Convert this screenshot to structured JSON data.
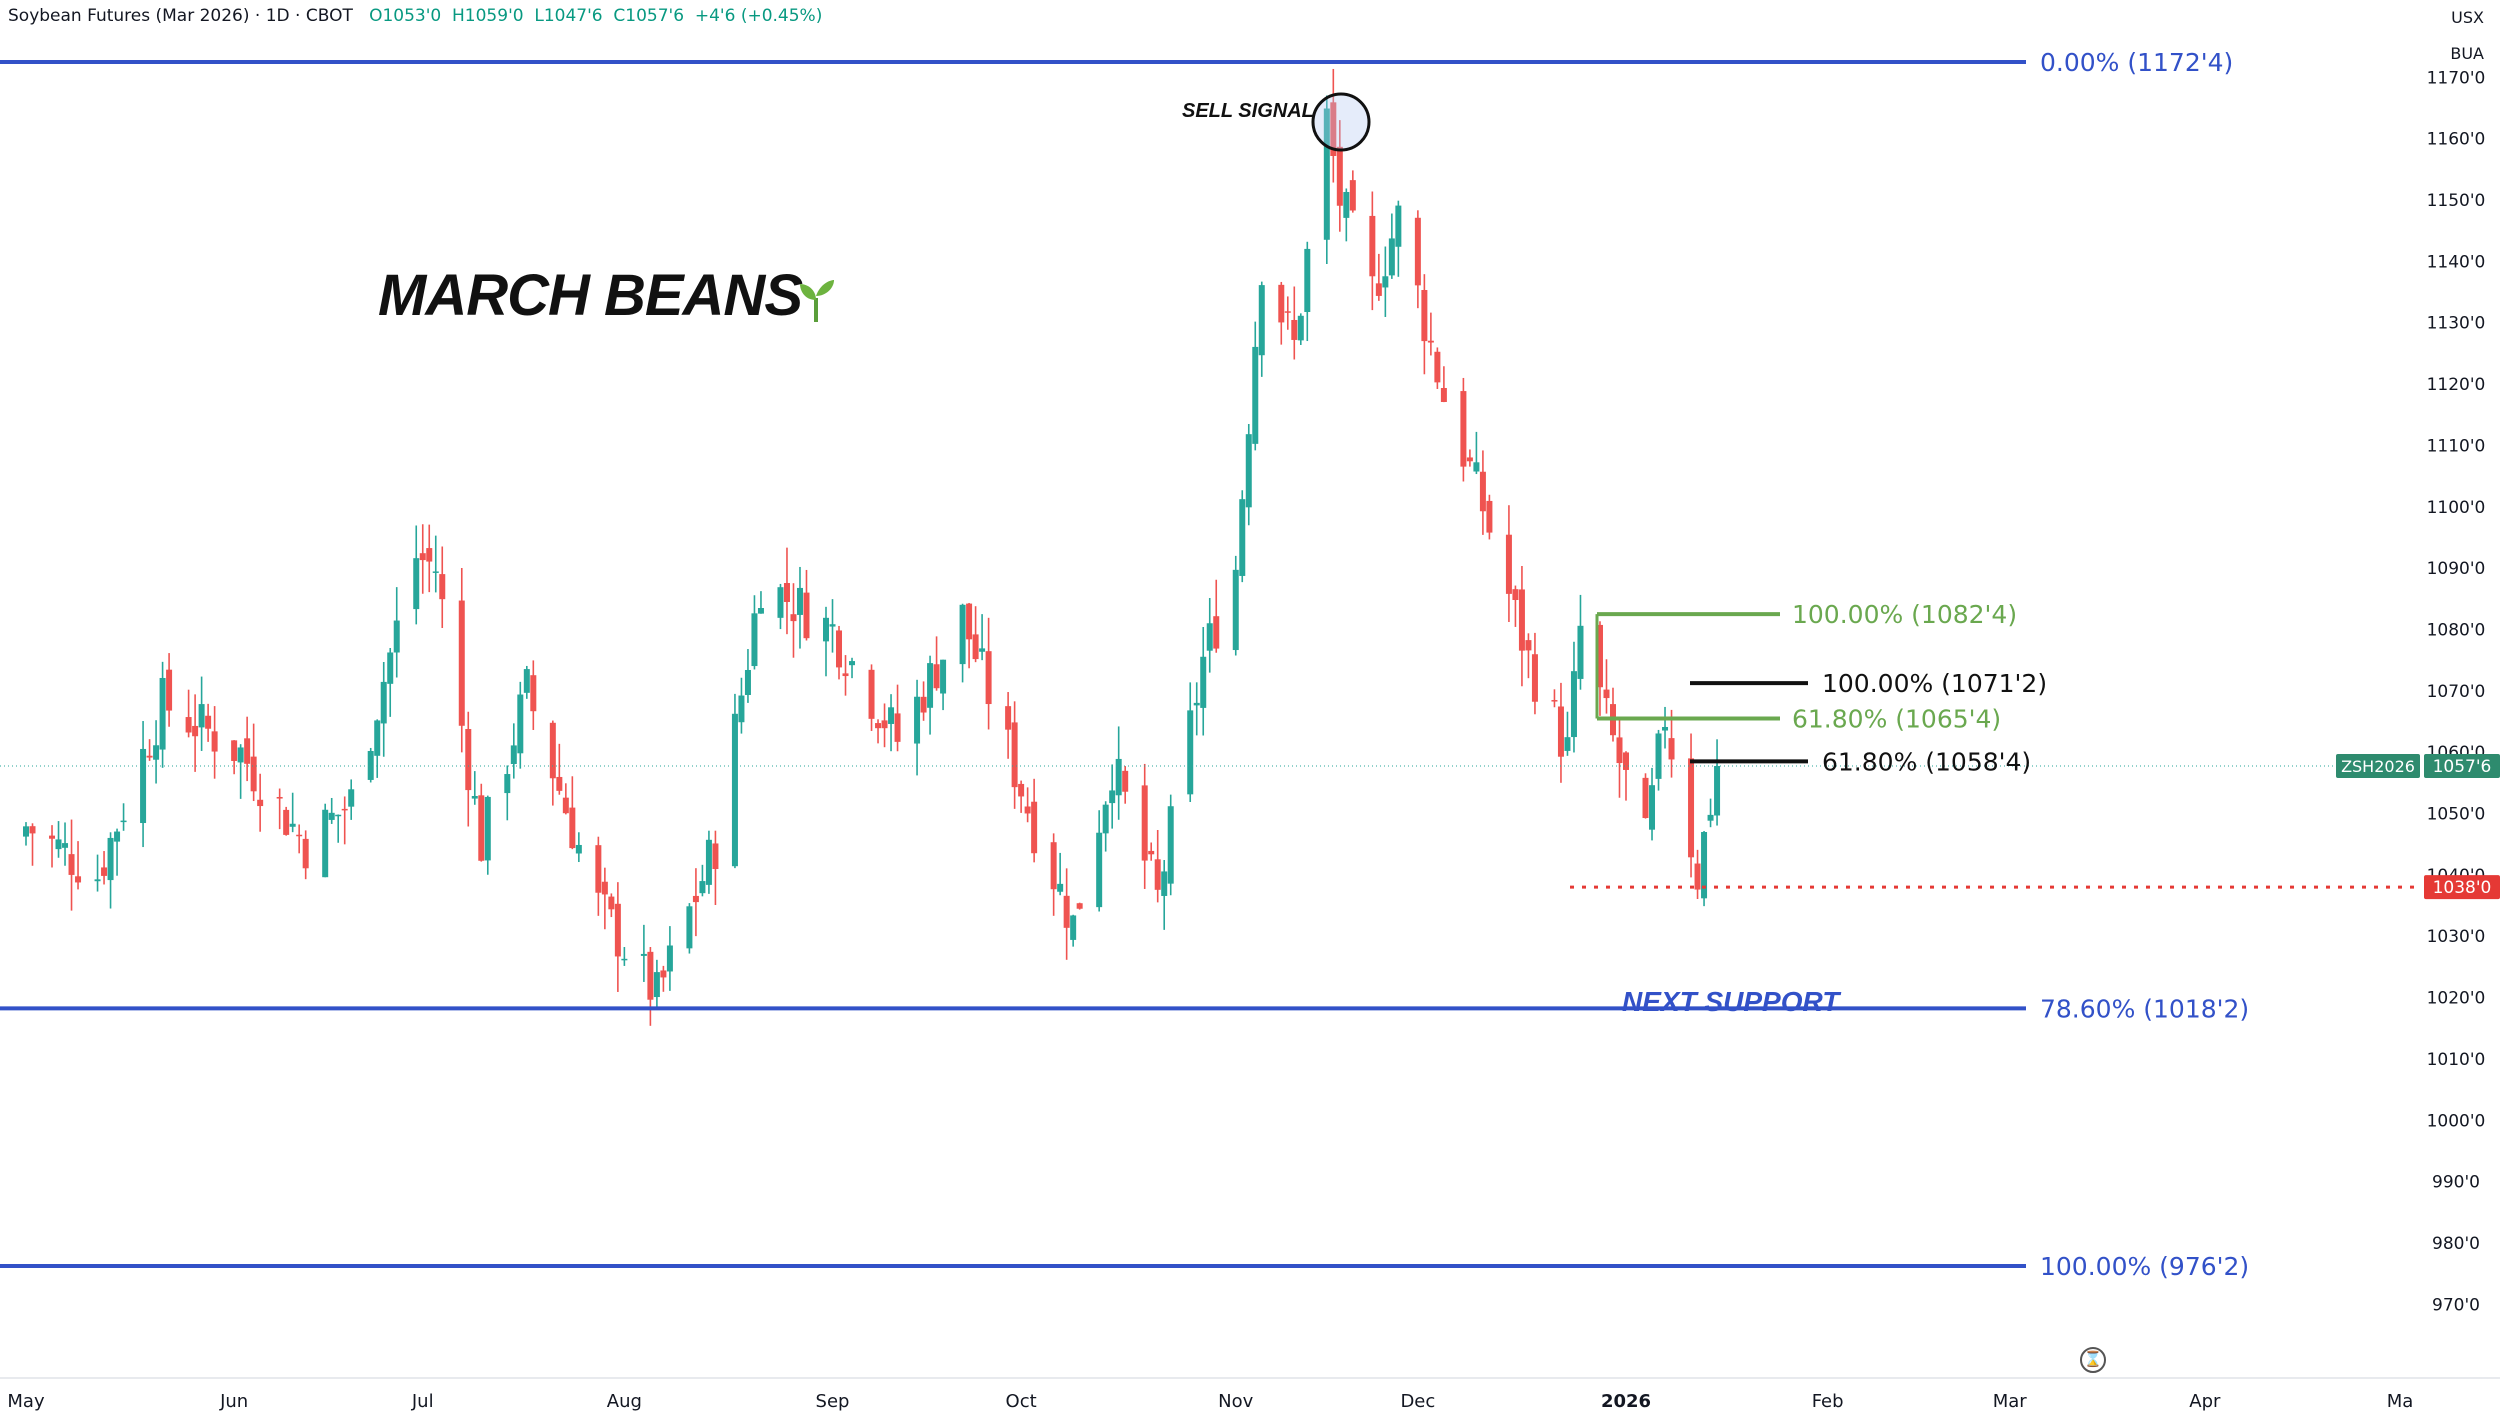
{
  "header": {
    "symbol_text": "Soybean Futures (Mar 2026) · 1D · CBOT",
    "open": "O1053'0",
    "high": "H1059'0",
    "low": "L1047'6",
    "close": "C1057'6",
    "change": "+4'6 (+0.45%)"
  },
  "price_axis": {
    "currency": "USX",
    "unit": "BUA"
  },
  "annotations": {
    "title": "MARCH BEANS",
    "sell_signal": "SELL SIGNAL",
    "next_support": "NEXT SUPPORT"
  },
  "colors": {
    "up": "#26a69a",
    "down": "#ef5350",
    "fib_blue": "#3251c8",
    "fib_green": "#6aa84f",
    "fib_black": "#111111",
    "support_red": "#e53935",
    "badge_green": "#2e8b6e"
  },
  "chart_data": {
    "type": "candlestick",
    "x_range": [
      "2025-05-01",
      "2026-05-05"
    ],
    "ylim": [
      962,
      1175
    ],
    "y_ticks": [
      "970'0",
      "980'0",
      "990'0",
      "1000'0",
      "1010'0",
      "1020'0",
      "1030'0",
      "1040'0",
      "1050'0",
      "1060'0",
      "1070'0",
      "1080'0",
      "1090'0",
      "1100'0",
      "1110'0",
      "1120'0",
      "1130'0",
      "1140'0",
      "1150'0",
      "1160'0",
      "1170'0"
    ],
    "x_ticks": [
      {
        "label": "May",
        "date": "2025-05-01"
      },
      {
        "label": "Jun",
        "date": "2025-06-02"
      },
      {
        "label": "Jul",
        "date": "2025-07-01"
      },
      {
        "label": "Aug",
        "date": "2025-08-01"
      },
      {
        "label": "Sep",
        "date": "2025-09-02"
      },
      {
        "label": "Oct",
        "date": "2025-10-01"
      },
      {
        "label": "Nov",
        "date": "2025-11-03"
      },
      {
        "label": "Dec",
        "date": "2025-12-01"
      },
      {
        "label": "2026",
        "date": "2026-01-02"
      },
      {
        "label": "Feb",
        "date": "2026-02-02"
      },
      {
        "label": "Mar",
        "date": "2026-03-02"
      },
      {
        "label": "Apr",
        "date": "2026-04-01"
      },
      {
        "label": "Ma",
        "date": "2026-05-01"
      }
    ],
    "anchor_points": [
      {
        "date": "2025-05-01",
        "close": 1048
      },
      {
        "date": "2025-05-12",
        "close": 1040
      },
      {
        "date": "2025-05-22",
        "close": 1068
      },
      {
        "date": "2025-06-03",
        "close": 1060
      },
      {
        "date": "2025-06-13",
        "close": 1045
      },
      {
        "date": "2025-06-20",
        "close": 1052
      },
      {
        "date": "2025-06-30",
        "close": 1092
      },
      {
        "date": "2025-07-03",
        "close": 1090
      },
      {
        "date": "2025-07-10",
        "close": 1045
      },
      {
        "date": "2025-07-17",
        "close": 1070
      },
      {
        "date": "2025-07-28",
        "close": 1035
      },
      {
        "date": "2025-08-06",
        "close": 1020
      },
      {
        "date": "2025-08-15",
        "close": 1045
      },
      {
        "date": "2025-08-22",
        "close": 1088
      },
      {
        "date": "2025-09-02",
        "close": 1080
      },
      {
        "date": "2025-09-12",
        "close": 1062
      },
      {
        "date": "2025-09-22",
        "close": 1082
      },
      {
        "date": "2025-10-03",
        "close": 1048
      },
      {
        "date": "2025-10-09",
        "close": 1032
      },
      {
        "date": "2025-10-15",
        "close": 1058
      },
      {
        "date": "2025-10-22",
        "close": 1036
      },
      {
        "date": "2025-10-29",
        "close": 1075
      },
      {
        "date": "2025-11-03",
        "close": 1090
      },
      {
        "date": "2025-11-07",
        "close": 1140
      },
      {
        "date": "2025-11-12",
        "close": 1126
      },
      {
        "date": "2025-11-17",
        "close": 1163
      },
      {
        "date": "2025-11-19",
        "close": 1150
      },
      {
        "date": "2025-11-24",
        "close": 1135
      },
      {
        "date": "2025-11-28",
        "close": 1147
      },
      {
        "date": "2025-12-05",
        "close": 1118
      },
      {
        "date": "2025-12-11",
        "close": 1100
      },
      {
        "date": "2025-12-18",
        "close": 1075
      },
      {
        "date": "2025-12-24",
        "close": 1060
      },
      {
        "date": "2025-12-26",
        "close": 1080
      },
      {
        "date": "2025-12-30",
        "close": 1065
      },
      {
        "date": "2026-01-05",
        "close": 1045
      },
      {
        "date": "2026-01-08",
        "close": 1066
      },
      {
        "date": "2026-01-13",
        "close": 1040
      },
      {
        "date": "2026-01-16",
        "close": 1057.75
      }
    ],
    "fib_lines": [
      {
        "label": "0.00% (1172'4)",
        "value": 1172.5,
        "color": "#3251c8"
      },
      {
        "label": "78.60% (1018'2)",
        "value": 1018.25,
        "color": "#3251c8"
      },
      {
        "label": "100.00% (976'2)",
        "value": 976.25,
        "color": "#3251c8"
      },
      {
        "label": "100.00% (1082'4)",
        "value": 1082.5,
        "color": "#6aa84f"
      },
      {
        "label": "61.80% (1065'4)",
        "value": 1065.5,
        "color": "#6aa84f"
      },
      {
        "label": "100.00% (1071'2)",
        "value": 1071.25,
        "color": "#111111"
      },
      {
        "label": "61.80% (1058'4)",
        "value": 1058.5,
        "color": "#111111"
      }
    ],
    "support_level": {
      "label": "1038'0",
      "value": 1038
    },
    "last_price": {
      "symbol": "ZSH2026",
      "label": "1057'6",
      "value": 1057.75
    }
  }
}
